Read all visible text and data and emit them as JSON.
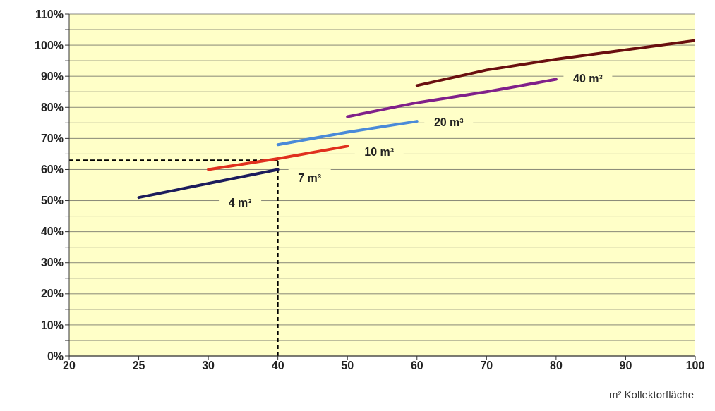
{
  "chart_data": {
    "type": "line",
    "xlabel": "m² Kollektorfläche",
    "categories": [
      "20",
      "25",
      "30",
      "40",
      "50",
      "60",
      "70",
      "80",
      "90",
      "100"
    ],
    "series": [
      {
        "name": "4 m³",
        "color": "#1c1c5c",
        "values": [
          null,
          51,
          55.5,
          60,
          null,
          null,
          null,
          null,
          null,
          null
        ]
      },
      {
        "name": "7 m³",
        "color": "#e0301e",
        "values": [
          null,
          null,
          60,
          63.5,
          67.5,
          null,
          null,
          null,
          null,
          null
        ]
      },
      {
        "name": "10 m³",
        "color": "#4a8ad8",
        "values": [
          null,
          null,
          null,
          68,
          72,
          75.5,
          null,
          null,
          null,
          null
        ]
      },
      {
        "name": "20 m³",
        "color": "#80208a",
        "values": [
          null,
          null,
          null,
          null,
          77,
          81.5,
          85,
          89,
          null,
          null
        ]
      },
      {
        "name": "40 m³",
        "color": "#6a0f0f",
        "values": [
          null,
          null,
          null,
          null,
          null,
          87,
          92,
          95.5,
          98.5,
          101.5
        ]
      }
    ],
    "ylim": [
      0,
      110
    ],
    "yticks": [
      {
        "value": 0,
        "label": "0%"
      },
      {
        "value": 5,
        "label": null
      },
      {
        "value": 10,
        "label": "10%"
      },
      {
        "value": 15,
        "label": null
      },
      {
        "value": 20,
        "label": "20%"
      },
      {
        "value": 25,
        "label": null
      },
      {
        "value": 30,
        "label": "30%"
      },
      {
        "value": 35,
        "label": null
      },
      {
        "value": 40,
        "label": "40%"
      },
      {
        "value": 45,
        "label": null
      },
      {
        "value": 50,
        "label": "50%"
      },
      {
        "value": 55,
        "label": null
      },
      {
        "value": 60,
        "label": "60%"
      },
      {
        "value": 65,
        "label": null
      },
      {
        "value": 70,
        "label": "70%"
      },
      {
        "value": 75,
        "label": null
      },
      {
        "value": 80,
        "label": "80%"
      },
      {
        "value": 85,
        "label": null
      },
      {
        "value": 90,
        "label": "90%"
      },
      {
        "value": 95,
        "label": null
      },
      {
        "value": 100,
        "label": "100%"
      },
      {
        "value": 105,
        "label": null
      },
      {
        "value": 110,
        "label": "110%"
      }
    ],
    "ref_lines": [
      {
        "axis": "y",
        "value": 63,
        "color": "#000000",
        "line_style": "dashed"
      },
      {
        "axis": "x",
        "value": "40",
        "color": "#000000",
        "line_style": "dashed"
      }
    ],
    "grid": "y",
    "marker": "none",
    "line_style": "solid"
  }
}
